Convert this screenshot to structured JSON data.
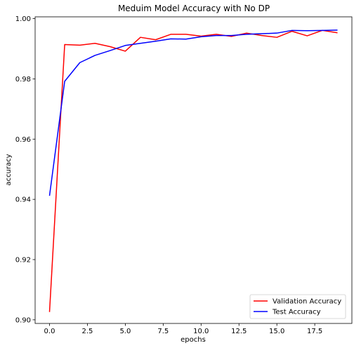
{
  "chart_data": {
    "type": "line",
    "title": "Meduim Model Accuracy with No DP",
    "xlabel": "epochs",
    "ylabel": "accuracy",
    "xlim": [
      -0.95,
      19.95
    ],
    "ylim": [
      0.8988,
      1.0006
    ],
    "x_ticks": [
      0.0,
      2.5,
      5.0,
      7.5,
      10.0,
      12.5,
      15.0,
      17.5
    ],
    "x_tick_labels": [
      "0.0",
      "2.5",
      "5.0",
      "7.5",
      "10.0",
      "12.5",
      "15.0",
      "17.5"
    ],
    "y_ticks": [
      0.9,
      0.92,
      0.94,
      0.96,
      0.98,
      1.0
    ],
    "y_tick_labels": [
      "0.90",
      "0.92",
      "0.94",
      "0.96",
      "0.98",
      "1.00"
    ],
    "grid": false,
    "legend": "bottom-right",
    "x": [
      0,
      1,
      2,
      3,
      4,
      5,
      6,
      7,
      8,
      9,
      10,
      11,
      12,
      13,
      14,
      15,
      16,
      17,
      18,
      19
    ],
    "series": [
      {
        "name": "Validation Accuracy",
        "color": "#ff0000",
        "values": [
          0.9026,
          0.9914,
          0.9912,
          0.9918,
          0.9907,
          0.9892,
          0.9938,
          0.993,
          0.9948,
          0.9948,
          0.9942,
          0.9948,
          0.9941,
          0.9952,
          0.9944,
          0.9938,
          0.9958,
          0.9943,
          0.9961,
          0.9953
        ]
      },
      {
        "name": "Test Accuracy",
        "color": "#0000ff",
        "values": [
          0.9412,
          0.9792,
          0.9854,
          0.9878,
          0.9894,
          0.9911,
          0.9918,
          0.9925,
          0.9933,
          0.9932,
          0.994,
          0.9944,
          0.9944,
          0.9948,
          0.995,
          0.9952,
          0.9961,
          0.996,
          0.9961,
          0.9962
        ]
      }
    ]
  }
}
